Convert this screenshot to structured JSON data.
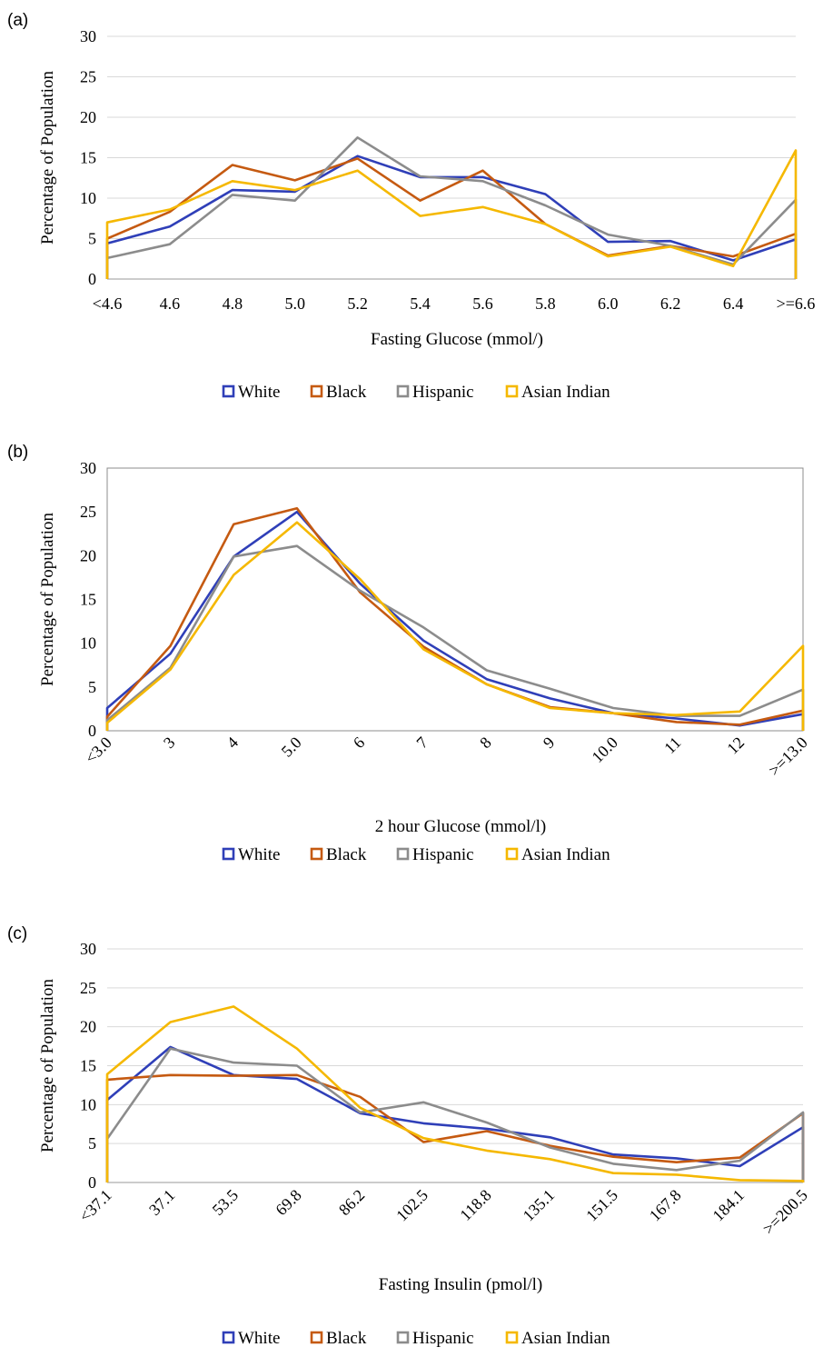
{
  "colors": {
    "White": "#2f3fb8",
    "Black": "#c55a11",
    "Hispanic": "#8c8c8c",
    "Asian Indian": "#f5b800"
  },
  "legend": [
    "White",
    "Black",
    "Hispanic",
    "Asian Indian"
  ],
  "chart_data": [
    {
      "panel": "(a)",
      "type": "line",
      "title": "",
      "xlabel": "Fasting Glucose (mmol/)",
      "ylabel": "Percentage of Population",
      "ylim": [
        0,
        30
      ],
      "yticks": [
        "0",
        "5",
        "10",
        "15",
        "20",
        "25",
        "30"
      ],
      "categories": [
        "<4.6",
        "4.6",
        "4.8",
        "5.0",
        "5.2",
        "5.4",
        "5.6",
        "5.8",
        "6.0",
        "6.2",
        "6.4",
        ">=6.6"
      ],
      "rotate_labels": false,
      "grid": true,
      "legend_position": "bottom",
      "series": [
        {
          "name": "White",
          "values": [
            4.4,
            6.5,
            11.0,
            10.8,
            15.2,
            12.6,
            12.6,
            10.5,
            4.6,
            4.7,
            2.3,
            4.9
          ]
        },
        {
          "name": "Black",
          "values": [
            5.0,
            8.3,
            14.1,
            12.2,
            14.9,
            9.7,
            13.4,
            6.8,
            2.9,
            4.1,
            2.8,
            5.6
          ]
        },
        {
          "name": "Hispanic",
          "values": [
            2.6,
            4.3,
            10.4,
            9.7,
            17.5,
            12.7,
            12.1,
            9.1,
            5.5,
            4.1,
            1.8,
            9.8
          ]
        },
        {
          "name": "Asian Indian",
          "values": [
            7.0,
            8.6,
            12.1,
            11.0,
            13.4,
            7.8,
            8.9,
            6.8,
            2.8,
            4.0,
            1.6,
            15.9
          ]
        }
      ]
    },
    {
      "panel": "(b)",
      "type": "line",
      "title": "",
      "xlabel": "2 hour Glucose (mmol/l)",
      "ylabel": "Percentage of Population",
      "ylim": [
        0,
        30
      ],
      "yticks": [
        "0",
        "5",
        "10",
        "15",
        "20",
        "25",
        "30"
      ],
      "categories": [
        "<3.0",
        "3",
        "4",
        "5.0",
        "6",
        "7",
        "8",
        "9",
        "10.0",
        "11",
        "12",
        ">=13.0"
      ],
      "rotate_labels": true,
      "grid": false,
      "legend_position": "bottom",
      "series": [
        {
          "name": "White",
          "values": [
            2.6,
            8.8,
            19.9,
            25.0,
            16.8,
            10.3,
            5.9,
            3.7,
            2.0,
            1.4,
            0.6,
            1.9
          ]
        },
        {
          "name": "Black",
          "values": [
            1.6,
            9.7,
            23.6,
            25.4,
            15.8,
            9.6,
            5.3,
            2.7,
            2.0,
            1.0,
            0.7,
            2.3
          ]
        },
        {
          "name": "Hispanic",
          "values": [
            1.2,
            7.2,
            19.9,
            21.1,
            16.0,
            11.8,
            6.9,
            4.8,
            2.6,
            1.7,
            1.7,
            4.7
          ]
        },
        {
          "name": "Asian Indian",
          "values": [
            0.9,
            7.0,
            17.8,
            23.8,
            17.3,
            9.3,
            5.3,
            2.6,
            2.0,
            1.8,
            2.2,
            9.7
          ]
        }
      ]
    },
    {
      "panel": "(c)",
      "type": "line",
      "title": "",
      "xlabel": "Fasting Insulin (pmol/l)",
      "ylabel": "Percentage of Population",
      "ylim": [
        0,
        30
      ],
      "yticks": [
        "0",
        "5",
        "10",
        "15",
        "20",
        "25",
        "30"
      ],
      "categories": [
        "<37.1",
        "37.1",
        "53.5",
        "69.8",
        "86.2",
        "102.5",
        "118.8",
        "135.1",
        "151.5",
        "167.8",
        "184.1",
        ">=200.5"
      ],
      "rotate_labels": true,
      "grid": true,
      "legend_position": "bottom",
      "series": [
        {
          "name": "White",
          "values": [
            10.6,
            17.4,
            13.8,
            13.3,
            8.9,
            7.6,
            6.9,
            5.8,
            3.6,
            3.1,
            2.1,
            7.1
          ]
        },
        {
          "name": "Black",
          "values": [
            13.2,
            13.8,
            13.7,
            13.8,
            11.0,
            5.2,
            6.6,
            4.7,
            3.3,
            2.6,
            3.2,
            8.9
          ]
        },
        {
          "name": "Hispanic",
          "values": [
            5.6,
            17.2,
            15.4,
            15.0,
            9.0,
            10.3,
            7.7,
            4.5,
            2.4,
            1.6,
            2.8,
            9.0
          ]
        },
        {
          "name": "Asian Indian",
          "values": [
            13.9,
            20.6,
            22.6,
            17.2,
            9.6,
            5.7,
            4.1,
            3.0,
            1.2,
            1.0,
            0.3,
            0.2
          ]
        }
      ]
    }
  ]
}
